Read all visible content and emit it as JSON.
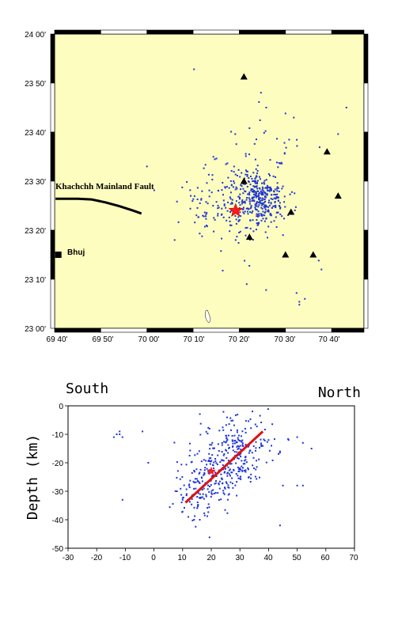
{
  "colors": {
    "map_fill": "#fdfdbf",
    "point": "#1f35d6",
    "star": "#ff1a1a",
    "fault_line": "#000000",
    "dip_line": "#dd1111"
  },
  "map": {
    "lon_ticks": [
      "69 40'",
      "69 50'",
      "70 00'",
      "70 10'",
      "70 20'",
      "70 30'",
      "70 40'"
    ],
    "lat_ticks": [
      "24 00'",
      "23 50'",
      "23 40'",
      "23 30'",
      "23 20'",
      "23 10'",
      "23 00'"
    ],
    "fault_label": "Khachchh Mainland Fault",
    "city_label": "Bhuj",
    "epicenter": [
      70.32,
      23.4
    ],
    "city": [
      69.68,
      23.25
    ],
    "stations": [
      [
        70.35,
        23.855
      ],
      [
        70.35,
        23.5
      ],
      [
        70.37,
        23.31
      ],
      [
        70.52,
        23.395
      ],
      [
        70.6,
        23.25
      ],
      [
        70.65,
        23.6
      ],
      [
        70.69,
        23.45
      ],
      [
        70.5,
        23.25
      ]
    ],
    "fault_trace": [
      [
        69.67,
        23.44
      ],
      [
        69.75,
        23.44
      ],
      [
        69.8,
        23.438
      ],
      [
        69.85,
        23.428
      ],
      [
        69.9,
        23.415
      ],
      [
        69.95,
        23.4
      ],
      [
        69.98,
        23.39
      ]
    ]
  },
  "section": {
    "south_label": "South",
    "north_label": "North",
    "y_label": "Depth (km)",
    "x_ticks": [
      "-30",
      "-20",
      "-10",
      "0",
      "10",
      "20",
      "30",
      "40",
      "50",
      "60",
      "70"
    ],
    "y_ticks": [
      "0",
      "-10",
      "-20",
      "-30",
      "-40",
      "-50"
    ],
    "hypocenter": [
      20,
      -23
    ],
    "dip_line": [
      [
        11,
        -34
      ],
      [
        38,
        -9
      ]
    ]
  }
}
